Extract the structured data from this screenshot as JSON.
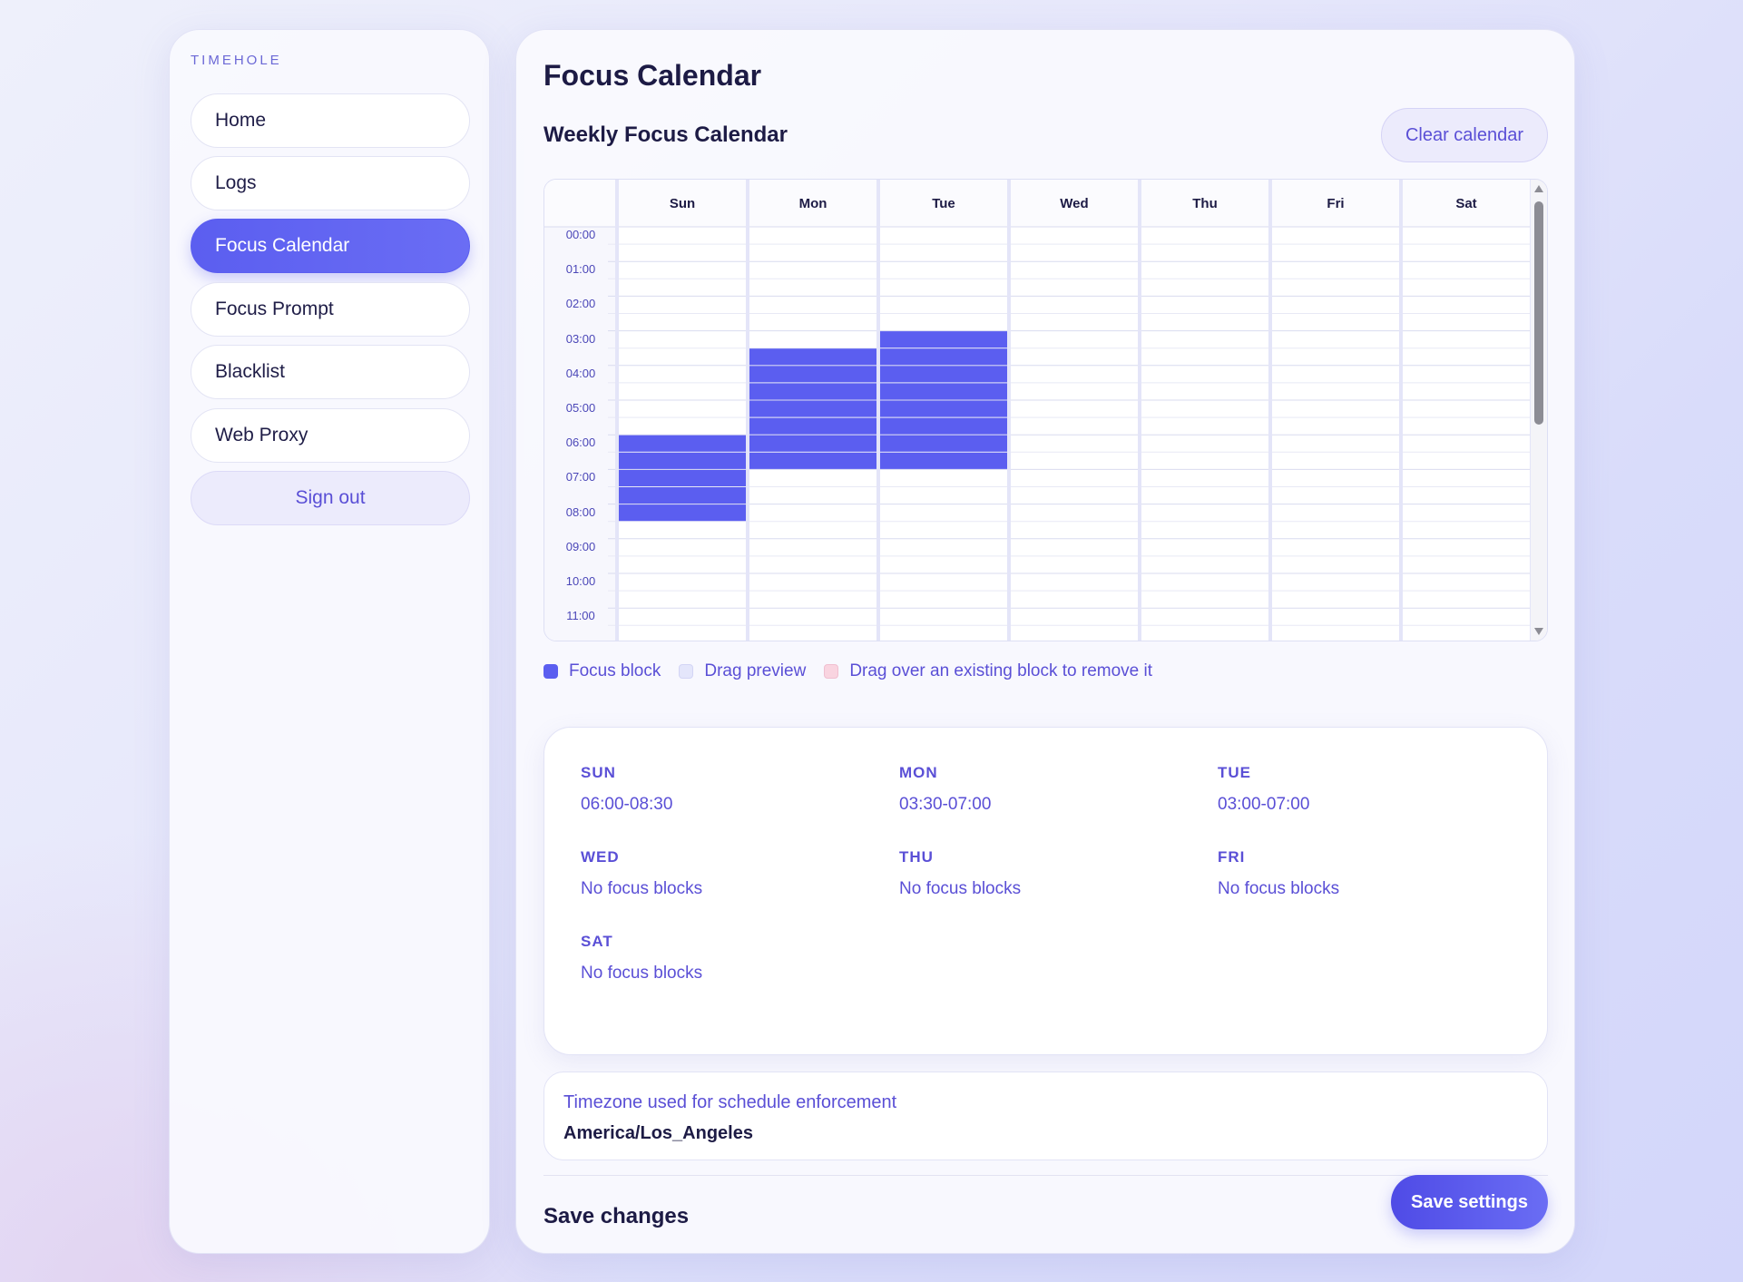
{
  "sidebar": {
    "brand": "TIMEHOLE",
    "items": [
      {
        "label": "Home",
        "active": false
      },
      {
        "label": "Logs",
        "active": false
      },
      {
        "label": "Focus Calendar",
        "active": true
      },
      {
        "label": "Focus Prompt",
        "active": false
      },
      {
        "label": "Blacklist",
        "active": false
      },
      {
        "label": "Web Proxy",
        "active": false
      }
    ],
    "sign_out": "Sign out"
  },
  "main": {
    "page_title": "Focus Calendar",
    "section_title": "Weekly Focus Calendar",
    "clear_button": "Clear calendar"
  },
  "calendar": {
    "days": [
      "Sun",
      "Mon",
      "Tue",
      "Wed",
      "Thu",
      "Fri",
      "Sat"
    ],
    "hours": [
      "00:00",
      "01:00",
      "02:00",
      "03:00",
      "04:00",
      "05:00",
      "06:00",
      "07:00",
      "08:00",
      "09:00",
      "10:00",
      "11:00"
    ],
    "blocks": [
      {
        "day": "Sun",
        "start": "06:00",
        "end": "08:30"
      },
      {
        "day": "Mon",
        "start": "03:30",
        "end": "07:00"
      },
      {
        "day": "Tue",
        "start": "03:00",
        "end": "07:00"
      }
    ],
    "colors": {
      "block": "#5b5ef0",
      "preview": "#e4e6fb",
      "remove": "#f9d4e0"
    }
  },
  "legend": {
    "focus_block": "Focus block",
    "drag_preview": "Drag preview",
    "drag_remove": "Drag over an existing block to remove it"
  },
  "summary": [
    {
      "day": "SUN",
      "value": "06:00-08:30"
    },
    {
      "day": "MON",
      "value": "03:30-07:00"
    },
    {
      "day": "TUE",
      "value": "03:00-07:00"
    },
    {
      "day": "WED",
      "value": "No focus blocks"
    },
    {
      "day": "THU",
      "value": "No focus blocks"
    },
    {
      "day": "FRI",
      "value": "No focus blocks"
    },
    {
      "day": "SAT",
      "value": "No focus blocks"
    }
  ],
  "timezone": {
    "label": "Timezone used for schedule enforcement",
    "value": "America/Los_Angeles"
  },
  "footer": {
    "save_label": "Save changes",
    "save_button": "Save settings"
  }
}
